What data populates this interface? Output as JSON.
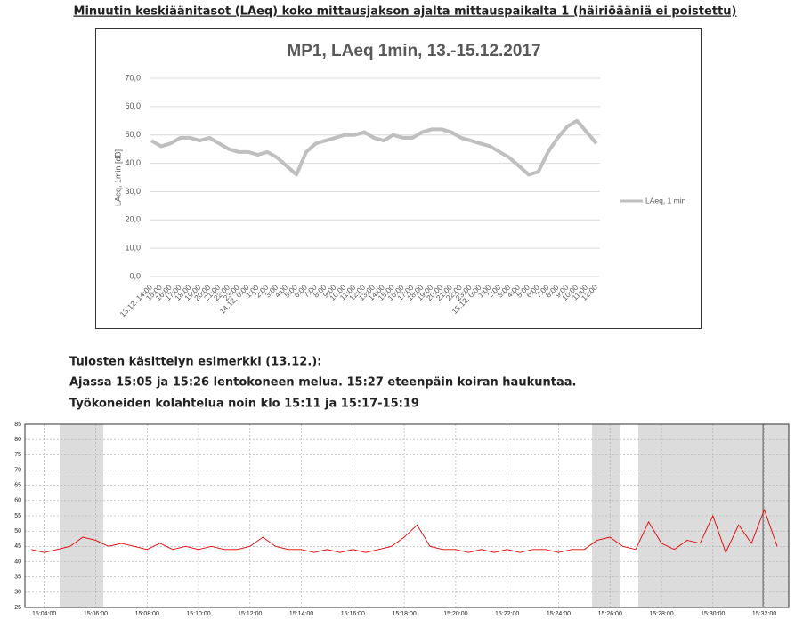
{
  "heading": "Minuutin keskiäänitasot (LAeq) koko mittausjakson ajalta mittauspaikalta 1 (häiriöääniä ei poistettu)",
  "notes": [
    "Tulosten käsittelyn esimerkki (13.12.):",
    "Ajassa 15:05 ja 15:26 lentokoneen melua. 15:27 eteenpäin koiran haukuntaa.",
    "Työkoneiden kolahtelua noin klo 15:11 ja 15:17-15:19"
  ],
  "chart_data": [
    {
      "type": "line",
      "title": "MP1, LAeq 1min, 13.-15.12.2017",
      "y_label": "LAeq, 1min [dB]",
      "categories": [
        "13.12. 14:00",
        "15:00",
        "16:00",
        "17:00",
        "18:00",
        "19:00",
        "20:00",
        "21:00",
        "22:00",
        "23:00",
        "14.12. 0:00",
        "1:00",
        "2:00",
        "3:00",
        "4:00",
        "5:00",
        "6:00",
        "7:00",
        "8:00",
        "9:00",
        "10:00",
        "11:00",
        "12:00",
        "13:00",
        "14:00",
        "15:00",
        "16:00",
        "17:00",
        "18:00",
        "19:00",
        "20:00",
        "21:00",
        "22:00",
        "23:00",
        "15.12. 0:00",
        "1:00",
        "2:00",
        "3:00",
        "4:00",
        "5:00",
        "6:00",
        "7:00",
        "8:00",
        "9:00",
        "10:00",
        "11:00",
        "12:00"
      ],
      "series": [
        {
          "name": "LAeq, 1 min",
          "color": "#bfbfbf",
          "values": [
            48,
            46,
            47,
            49,
            49,
            48,
            49,
            47,
            45,
            44,
            44,
            43,
            44,
            42,
            39,
            36,
            44,
            47,
            48,
            49,
            50,
            50,
            51,
            49,
            48,
            50,
            49,
            49,
            51,
            52,
            52,
            51,
            49,
            48,
            47,
            46,
            44,
            42,
            39,
            36,
            37,
            44,
            49,
            53,
            55,
            51,
            47
          ]
        }
      ],
      "ylim": [
        0,
        70
      ],
      "yticks": [
        {
          "value": 0,
          "label": "0,0"
        },
        {
          "value": 10,
          "label": "10,0"
        },
        {
          "value": 20,
          "label": "20,0"
        },
        {
          "value": 30,
          "label": "30,0"
        },
        {
          "value": 40,
          "label": "40,0"
        },
        {
          "value": 50,
          "label": "50,0"
        },
        {
          "value": 60,
          "label": "60,0"
        },
        {
          "value": 70,
          "label": "70,0"
        }
      ],
      "grid": true,
      "legend": "right"
    },
    {
      "type": "line",
      "x": [
        903.5,
        904,
        904.5,
        905,
        905.5,
        906,
        906.5,
        907,
        907.5,
        908,
        908.5,
        909,
        909.5,
        910,
        910.5,
        911,
        911.5,
        912,
        912.5,
        913,
        913.5,
        914,
        914.5,
        915,
        915.5,
        916,
        916.5,
        917,
        917.5,
        918,
        918.5,
        919,
        919.5,
        920,
        920.5,
        921,
        921.5,
        922,
        922.5,
        923,
        923.5,
        924,
        924.5,
        925,
        925.5,
        926,
        926.5,
        927,
        927.5,
        928,
        928.5,
        929,
        929.5,
        930,
        930.5,
        931,
        931.5,
        932,
        932.5
      ],
      "series": [
        {
          "color": "#e00000",
          "values": [
            44,
            43,
            44,
            45,
            48,
            47,
            45,
            46,
            45,
            44,
            46,
            44,
            45,
            44,
            45,
            44,
            44,
            45,
            48,
            45,
            44,
            44,
            43,
            44,
            43,
            44,
            43,
            44,
            45,
            48,
            52,
            45,
            44,
            44,
            43,
            44,
            43,
            44,
            43,
            44,
            44,
            43,
            44,
            44,
            47,
            48,
            45,
            44,
            53,
            46,
            44,
            47,
            46,
            55,
            43,
            52,
            46,
            57,
            45
          ]
        }
      ],
      "xlim": [
        903.25,
        932.95
      ],
      "xticks": [
        {
          "value": 904,
          "label": "15:04:00"
        },
        {
          "value": 906,
          "label": "15:06:00"
        },
        {
          "value": 908,
          "label": "15:08:00"
        },
        {
          "value": 910,
          "label": "15:10:00"
        },
        {
          "value": 912,
          "label": "15:12:00"
        },
        {
          "value": 914,
          "label": "15:14:00"
        },
        {
          "value": 916,
          "label": "15:16:00"
        },
        {
          "value": 918,
          "label": "15:18:00"
        },
        {
          "value": 920,
          "label": "15:20:00"
        },
        {
          "value": 922,
          "label": "15:22:00"
        },
        {
          "value": 924,
          "label": "15:24:00"
        },
        {
          "value": 926,
          "label": "15:26:00"
        },
        {
          "value": 928,
          "label": "15:28:00"
        },
        {
          "value": 930,
          "label": "15:30:00"
        },
        {
          "value": 932,
          "label": "15:32:00"
        }
      ],
      "ylim": [
        25,
        85
      ],
      "yticks": [
        25,
        30,
        35,
        40,
        45,
        50,
        55,
        60,
        65,
        70,
        75,
        80,
        85
      ],
      "shaded_ranges": [
        [
          904.6,
          906.3
        ],
        [
          925.3,
          926.4
        ],
        [
          927.1,
          932.95
        ]
      ],
      "shade_color": "#dcdcdc",
      "marker_x": 931.95,
      "grid": true
    }
  ]
}
